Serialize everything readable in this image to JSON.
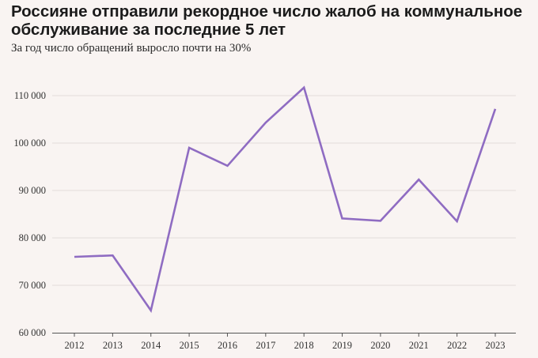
{
  "title": "Россияне отправили рекордное число жалоб на коммунальное обслуживание за последние 5 лет",
  "subtitle": "За год число обращений выросло почти на 30%",
  "colors": {
    "line": "#8f6cc2",
    "grid": "#e3dcdb",
    "background": "#f9f4f2",
    "axis": "#555555"
  },
  "chart_data": {
    "type": "line",
    "title": "Россияне отправили рекордное число жалоб на коммунальное обслуживание за последние 5 лет",
    "subtitle": "За год число обращений выросло почти на 30%",
    "xlabel": "",
    "ylabel": "",
    "x": [
      "2012",
      "2013",
      "2014",
      "2015",
      "2016",
      "2017",
      "2018",
      "2019",
      "2020",
      "2021",
      "2022",
      "2023"
    ],
    "series": [
      {
        "values": [
          76000,
          76300,
          64700,
          99000,
          95200,
          104300,
          111700,
          84100,
          83600,
          92300,
          83500,
          107200
        ]
      }
    ],
    "yticks": [
      60000,
      70000,
      80000,
      90000,
      100000,
      110000
    ],
    "ytick_labels": [
      "60 000",
      "70 000",
      "80 000",
      "90 000",
      "100 000",
      "110 000"
    ],
    "ylim": [
      60000,
      115000
    ],
    "grid": true,
    "legend": "none"
  }
}
